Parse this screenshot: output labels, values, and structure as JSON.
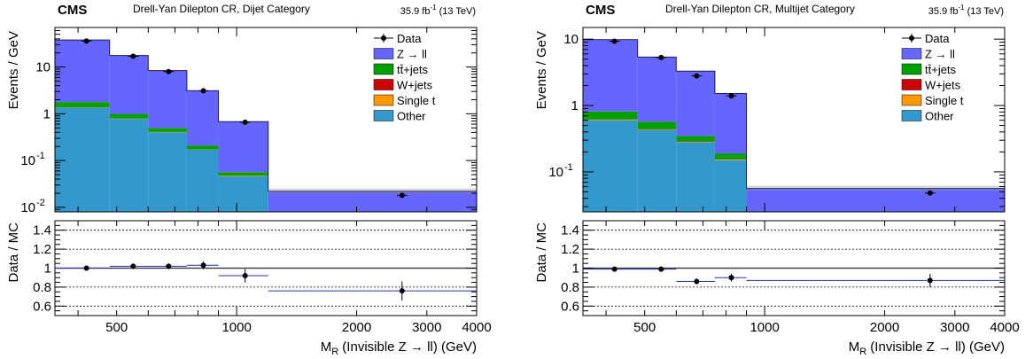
{
  "legend_labels": {
    "data": "Data",
    "zll": "Z → ll",
    "tt": "tt̄+jets",
    "wjets": "W+jets",
    "singlet": "Single t",
    "other": "Other"
  },
  "colors": {
    "zll": "#6666ff",
    "tt": "#00a000",
    "wjets": "#d00000",
    "singlet": "#ff9900",
    "other": "#3399cc"
  },
  "chart_data": [
    {
      "type": "bar",
      "subtype": "stacked-histogram-with-ratio",
      "experiment": "CMS",
      "title": "Drell-Yan Dilepton CR, Dijet Category",
      "lumi_value": "35.9",
      "lumi_unit": "fb",
      "lumi_exp": "-1",
      "energy": " (13 TeV)",
      "ylabel": "Events / GeV",
      "ratio_ylabel": "Data / MC",
      "xlabel_main": "M",
      "xlabel_sub": "R",
      "xlabel_rest": " (Invisible Z → ll) (GeV)",
      "xscale": "log",
      "xlim": [
        350,
        4000
      ],
      "xticks": [
        500,
        1000,
        2000,
        3000,
        4000
      ],
      "xtick_labels": [
        "500",
        "1000",
        "2000",
        "3000",
        "4000"
      ],
      "yscale": "log",
      "ylim": [
        0.008,
        70
      ],
      "yticks": [
        0.01,
        0.1,
        1,
        10
      ],
      "ytick_labels": [
        [
          "10",
          "-2"
        ],
        [
          "10",
          "-1"
        ],
        [
          "1",
          ""
        ],
        [
          "10",
          ""
        ]
      ],
      "ratio_ylim": [
        0.5,
        1.5
      ],
      "ratio_yticks": [
        0.6,
        0.8,
        1.0,
        1.2,
        1.4
      ],
      "ratio_ytick_labels": [
        "0.6",
        "0.8",
        "1",
        "1.2",
        "1.4"
      ],
      "bin_edges": [
        350,
        480,
        600,
        750,
        900,
        1200,
        4000
      ],
      "stack": [
        {
          "name": "Other",
          "values": [
            1.35,
            0.78,
            0.4,
            0.17,
            0.046,
            0.0015
          ]
        },
        {
          "name": "Single t",
          "values": [
            0.02,
            0.01,
            0.005,
            0.002,
            0.001,
            0.0001
          ]
        },
        {
          "name": "W+jets",
          "values": [
            0.01,
            0.005,
            0.003,
            0.001,
            0.0005,
            0.0001
          ]
        },
        {
          "name": "tt̄+jets",
          "values": [
            0.4,
            0.2,
            0.09,
            0.037,
            0.009,
            0.0003
          ]
        },
        {
          "name": "Z → ll",
          "values": [
            36,
            16.6,
            7.9,
            2.9,
            0.62,
            0.0201
          ]
        }
      ],
      "data": {
        "x": [
          420,
          550,
          675,
          825,
          1050,
          2600
        ],
        "y": [
          36,
          17,
          8.0,
          3.1,
          0.66,
          0.018
        ]
      },
      "ratio": {
        "x": [
          420,
          550,
          675,
          825,
          1050,
          2600
        ],
        "y": [
          1.0,
          1.02,
          1.02,
          1.03,
          0.92,
          0.76
        ],
        "err": [
          0.02,
          0.03,
          0.03,
          0.04,
          0.07,
          0.1
        ]
      },
      "legend_position": "top-right"
    },
    {
      "type": "bar",
      "subtype": "stacked-histogram-with-ratio",
      "experiment": "CMS",
      "title": "Drell-Yan Dilepton CR, Multijet Category",
      "lumi_value": "35.9",
      "lumi_unit": "fb",
      "lumi_exp": "-1",
      "energy": " (13 TeV)",
      "ylabel": "Events / GeV",
      "ratio_ylabel": "Data / MC",
      "xlabel_main": "M",
      "xlabel_sub": "R",
      "xlabel_rest": " (Invisible Z → ll) (GeV)",
      "xscale": "log",
      "xlim": [
        350,
        4000
      ],
      "xticks": [
        500,
        1000,
        2000,
        3000,
        4000
      ],
      "xtick_labels": [
        "500",
        "1000",
        "2000",
        "3000",
        "4000"
      ],
      "yscale": "log",
      "ylim": [
        0.025,
        15
      ],
      "yticks": [
        0.1,
        1,
        10
      ],
      "ytick_labels": [
        [
          "10",
          "-1"
        ],
        [
          "1",
          ""
        ],
        [
          "10",
          ""
        ]
      ],
      "ratio_ylim": [
        0.5,
        1.5
      ],
      "ratio_yticks": [
        0.6,
        0.8,
        1.0,
        1.2,
        1.4
      ],
      "ratio_ytick_labels": [
        "0.6",
        "0.8",
        "1",
        "1.2",
        "1.4"
      ],
      "bin_edges": [
        350,
        480,
        600,
        750,
        900,
        4000
      ],
      "stack": [
        {
          "name": "Other",
          "values": [
            0.6,
            0.43,
            0.28,
            0.15,
            0.001
          ]
        },
        {
          "name": "Single t",
          "values": [
            0.01,
            0.008,
            0.005,
            0.003,
            0.0003
          ]
        },
        {
          "name": "W+jets",
          "values": [
            0.005,
            0.004,
            0.003,
            0.002,
            0.0002
          ]
        },
        {
          "name": "tt̄+jets",
          "values": [
            0.2,
            0.13,
            0.06,
            0.035,
            0.002
          ]
        },
        {
          "name": "Z → ll",
          "values": [
            9.0,
            4.8,
            2.95,
            1.33,
            0.053
          ]
        }
      ],
      "data": {
        "x": [
          420,
          550,
          675,
          825,
          2600
        ],
        "y": [
          9.3,
          5.3,
          2.8,
          1.4,
          0.048
        ]
      },
      "ratio": {
        "x": [
          420,
          550,
          675,
          825,
          2600
        ],
        "y": [
          0.99,
          0.99,
          0.86,
          0.9,
          0.87
        ],
        "err": [
          0.02,
          0.03,
          0.03,
          0.04,
          0.07
        ]
      },
      "legend_position": "top-right"
    }
  ]
}
